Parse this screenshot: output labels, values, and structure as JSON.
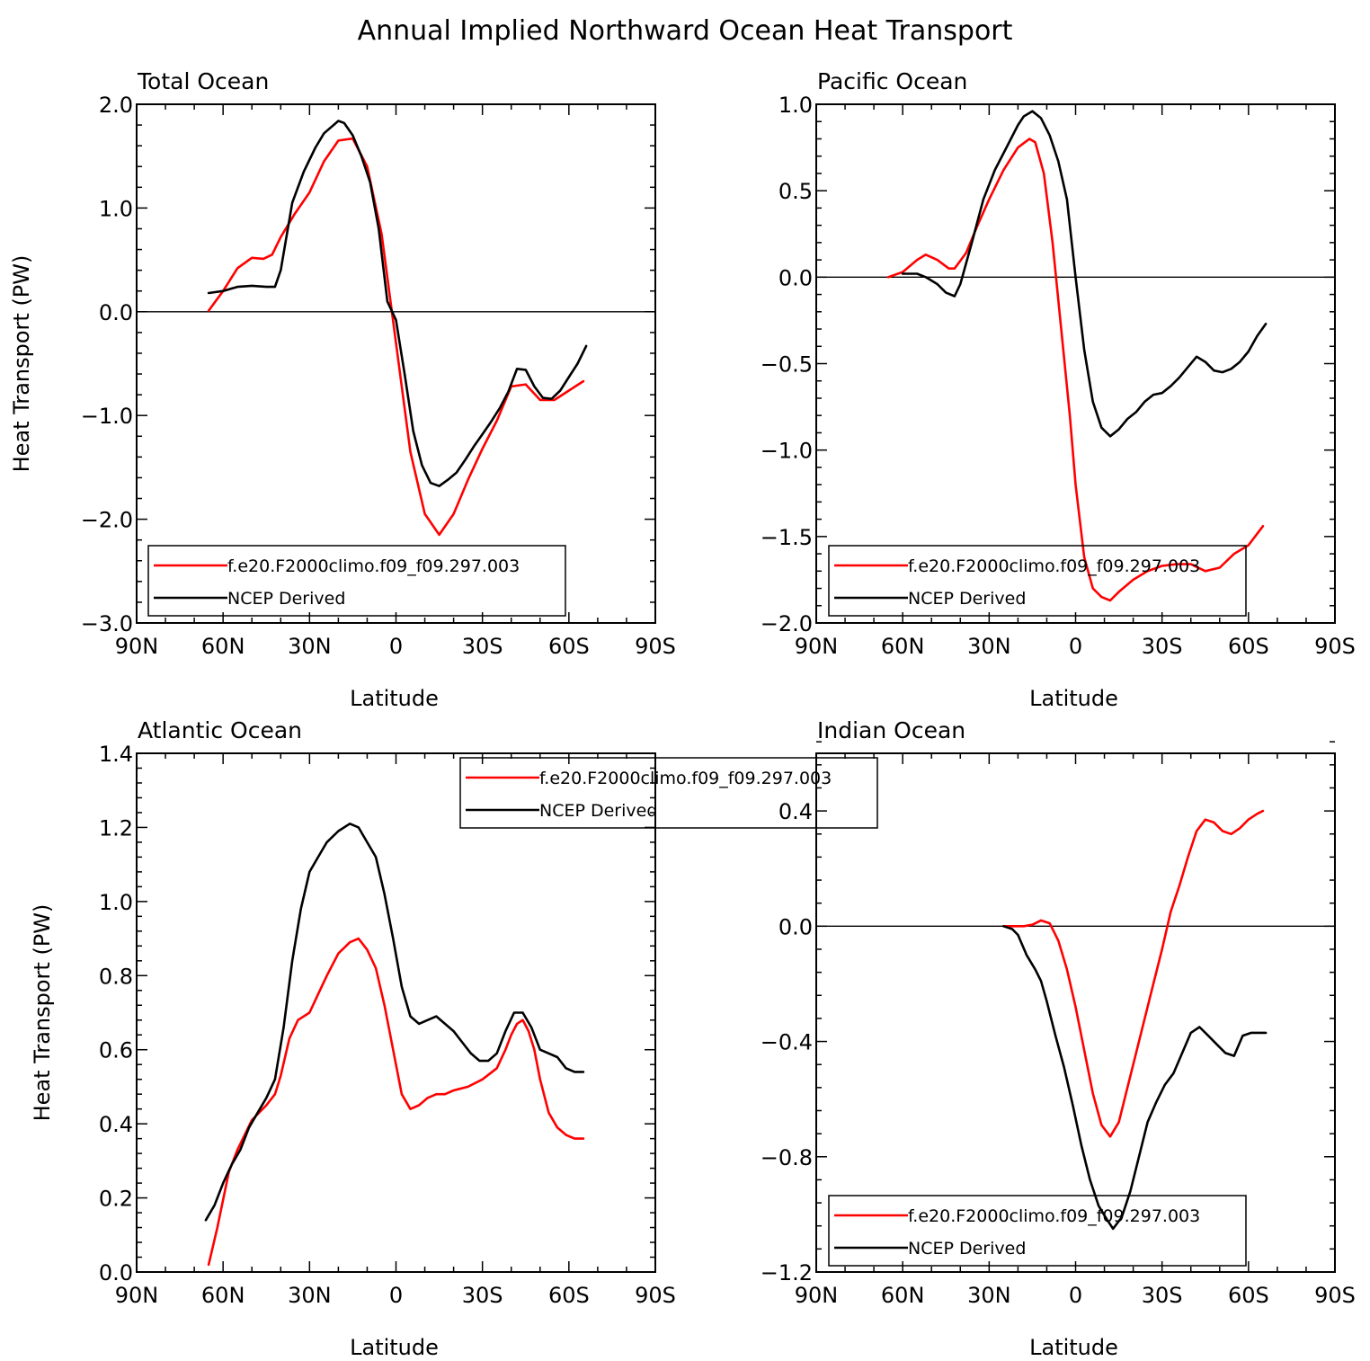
{
  "figure": {
    "title": "Annual Implied Northward Ocean Heat Transport"
  },
  "colors": {
    "model": "#ff0000",
    "ncep": "#000000"
  },
  "chart_data": [
    {
      "type": "line",
      "title": "Total Ocean",
      "xlabel": "Latitude",
      "ylabel": "Heat Transport (PW)",
      "xlim": [
        90,
        -90
      ],
      "xticks": [
        90,
        60,
        30,
        0,
        -30,
        -60,
        -90
      ],
      "xticklabels": [
        "90N",
        "60N",
        "30N",
        "0",
        "30S",
        "60S",
        "90S"
      ],
      "ylim": [
        -3.0,
        2.0
      ],
      "yticks": [
        -3,
        -2,
        -1,
        0,
        1,
        2
      ],
      "yticklabels": [
        "−3.0",
        "−2.0",
        "−1.0",
        "0.0",
        "1.0",
        "2.0"
      ],
      "legend": {
        "placement": "bottom-left"
      },
      "series": [
        {
          "name": "f.e20.F2000climo.f09_f09.297.003",
          "color": "#ff0000",
          "x": [
            65,
            60,
            55,
            50,
            46,
            43,
            40,
            35,
            30,
            25,
            20,
            15,
            10,
            5,
            0,
            -5,
            -10,
            -15,
            -20,
            -25,
            -30,
            -35,
            -40,
            -45,
            -50,
            -55,
            -60,
            -65
          ],
          "y": [
            0.01,
            0.2,
            0.42,
            0.52,
            0.51,
            0.55,
            0.72,
            0.95,
            1.15,
            1.45,
            1.65,
            1.67,
            1.4,
            0.75,
            -0.3,
            -1.35,
            -1.95,
            -2.15,
            -1.95,
            -1.62,
            -1.32,
            -1.05,
            -0.72,
            -0.7,
            -0.85,
            -0.85,
            -0.76,
            -0.67
          ]
        },
        {
          "name": "NCEP Derived",
          "color": "#000000",
          "x": [
            65,
            60,
            55,
            50,
            45,
            42,
            40,
            36,
            32,
            28,
            25,
            20,
            18,
            15,
            12,
            9,
            6,
            3,
            0,
            -3,
            -6,
            -9,
            -12,
            -15,
            -18,
            -21,
            -24,
            -27,
            -30,
            -33,
            -36,
            -39,
            -42,
            -45,
            -48,
            -51,
            -54,
            -57,
            -60,
            -63,
            -66
          ],
          "y": [
            0.18,
            0.2,
            0.24,
            0.25,
            0.24,
            0.24,
            0.4,
            1.05,
            1.35,
            1.58,
            1.72,
            1.84,
            1.82,
            1.7,
            1.5,
            1.25,
            0.8,
            0.1,
            -0.08,
            -0.6,
            -1.15,
            -1.48,
            -1.65,
            -1.68,
            -1.62,
            -1.55,
            -1.43,
            -1.3,
            -1.18,
            -1.06,
            -0.93,
            -0.77,
            -0.55,
            -0.56,
            -0.72,
            -0.83,
            -0.84,
            -0.76,
            -0.63,
            -0.5,
            -0.33
          ]
        }
      ]
    },
    {
      "type": "line",
      "title": "Pacific Ocean",
      "xlabel": "Latitude",
      "ylabel": "",
      "xlim": [
        90,
        -90
      ],
      "xticks": [
        90,
        60,
        30,
        0,
        -30,
        -60,
        -90
      ],
      "xticklabels": [
        "90N",
        "60N",
        "30N",
        "0",
        "30S",
        "60S",
        "90S"
      ],
      "ylim": [
        -2.0,
        1.0
      ],
      "yticks": [
        -2,
        -1.5,
        -1,
        -0.5,
        0,
        0.5,
        1
      ],
      "yticklabels": [
        "−2.0",
        "−1.5",
        "−1.0",
        "−0.5",
        "0.0",
        "0.5",
        "1.0"
      ],
      "legend": {
        "placement": "bottom-left"
      },
      "series": [
        {
          "name": "f.e20.F2000climo.f09_f09.297.003",
          "color": "#ff0000",
          "x": [
            65,
            60,
            55,
            52,
            48,
            44,
            42,
            38,
            34,
            30,
            25,
            20,
            16,
            14,
            11,
            8,
            5,
            2,
            0,
            -3,
            -6,
            -9,
            -12,
            -15,
            -20,
            -25,
            -30,
            -35,
            -40,
            -45,
            -50,
            -55,
            -60,
            -65
          ],
          "y": [
            0.0,
            0.03,
            0.1,
            0.13,
            0.1,
            0.05,
            0.05,
            0.14,
            0.3,
            0.45,
            0.62,
            0.75,
            0.8,
            0.78,
            0.6,
            0.2,
            -0.3,
            -0.8,
            -1.2,
            -1.62,
            -1.8,
            -1.85,
            -1.87,
            -1.82,
            -1.75,
            -1.7,
            -1.67,
            -1.66,
            -1.66,
            -1.7,
            -1.68,
            -1.6,
            -1.55,
            -1.44
          ]
        },
        {
          "name": "NCEP Derived",
          "color": "#000000",
          "x": [
            60,
            55,
            52,
            48,
            45,
            42,
            40,
            36,
            32,
            28,
            24,
            20,
            18,
            15,
            12,
            9,
            6,
            3,
            0,
            -3,
            -6,
            -9,
            -12,
            -15,
            -18,
            -21,
            -24,
            -27,
            -30,
            -33,
            -36,
            -39,
            -42,
            -45,
            -48,
            -51,
            -54,
            -57,
            -60,
            -63,
            -66
          ],
          "y": [
            0.02,
            0.02,
            0.0,
            -0.04,
            -0.09,
            -0.11,
            -0.04,
            0.2,
            0.45,
            0.62,
            0.75,
            0.88,
            0.93,
            0.96,
            0.92,
            0.82,
            0.67,
            0.45,
            0.0,
            -0.42,
            -0.72,
            -0.87,
            -0.92,
            -0.88,
            -0.82,
            -0.78,
            -0.72,
            -0.68,
            -0.67,
            -0.63,
            -0.58,
            -0.52,
            -0.46,
            -0.49,
            -0.54,
            -0.55,
            -0.53,
            -0.49,
            -0.43,
            -0.34,
            -0.27
          ]
        }
      ]
    },
    {
      "type": "line",
      "title": "Atlantic Ocean",
      "xlabel": "Latitude",
      "ylabel": "Heat Transport (PW)",
      "xlim": [
        90,
        -90
      ],
      "xticks": [
        90,
        60,
        30,
        0,
        -30,
        -60,
        -90
      ],
      "xticklabels": [
        "90N",
        "60N",
        "30N",
        "0",
        "30S",
        "60S",
        "90S"
      ],
      "ylim": [
        0.0,
        1.4
      ],
      "yticks": [
        0,
        0.2,
        0.4,
        0.6,
        0.8,
        1.0,
        1.2,
        1.4
      ],
      "yticklabels": [
        "0.0",
        "0.2",
        "0.4",
        "0.6",
        "0.8",
        "1.0",
        "1.2",
        "1.4"
      ],
      "legend": {
        "placement": "top-right"
      },
      "series": [
        {
          "name": "f.e20.F2000climo.f09_f09.297.003",
          "color": "#ff0000",
          "x": [
            65,
            62,
            58,
            55,
            50,
            45,
            42,
            40,
            37,
            34,
            30,
            27,
            24,
            20,
            16,
            13,
            10,
            7,
            4,
            1,
            -2,
            -5,
            -8,
            -11,
            -14,
            -17,
            -20,
            -25,
            -30,
            -35,
            -38,
            -40,
            -42,
            -44,
            -46,
            -48,
            -50,
            -53,
            -56,
            -59,
            -62,
            -65
          ],
          "y": [
            0.02,
            0.12,
            0.27,
            0.33,
            0.41,
            0.45,
            0.48,
            0.53,
            0.63,
            0.68,
            0.7,
            0.75,
            0.8,
            0.86,
            0.89,
            0.9,
            0.87,
            0.82,
            0.72,
            0.6,
            0.48,
            0.44,
            0.45,
            0.47,
            0.48,
            0.48,
            0.49,
            0.5,
            0.52,
            0.55,
            0.6,
            0.64,
            0.67,
            0.68,
            0.65,
            0.6,
            0.52,
            0.43,
            0.39,
            0.37,
            0.36,
            0.36
          ]
        },
        {
          "name": "NCEP Derived",
          "color": "#000000",
          "x": [
            66,
            63,
            60,
            57,
            54,
            51,
            48,
            45,
            42,
            39,
            36,
            33,
            30,
            27,
            24,
            20,
            16,
            13,
            10,
            7,
            4,
            1,
            -2,
            -5,
            -8,
            -11,
            -14,
            -17,
            -20,
            -23,
            -26,
            -29,
            -32,
            -35,
            -38,
            -41,
            -44,
            -47,
            -50,
            -53,
            -56,
            -59,
            -62,
            -65
          ],
          "y": [
            0.14,
            0.18,
            0.24,
            0.29,
            0.33,
            0.39,
            0.43,
            0.47,
            0.52,
            0.66,
            0.84,
            0.98,
            1.08,
            1.12,
            1.16,
            1.19,
            1.21,
            1.2,
            1.16,
            1.12,
            1.02,
            0.9,
            0.77,
            0.69,
            0.67,
            0.68,
            0.69,
            0.67,
            0.65,
            0.62,
            0.59,
            0.57,
            0.57,
            0.59,
            0.65,
            0.7,
            0.7,
            0.66,
            0.6,
            0.59,
            0.58,
            0.55,
            0.54,
            0.54
          ]
        }
      ]
    },
    {
      "type": "line",
      "title": "Indian Ocean",
      "xlabel": "Latitude",
      "ylabel": "",
      "xlim": [
        90,
        -90
      ],
      "xticks": [
        90,
        60,
        30,
        0,
        -30,
        -60,
        -90
      ],
      "xticklabels": [
        "90N",
        "60N",
        "30N",
        "0",
        "30S",
        "60S",
        "90S"
      ],
      "ylim": [
        -1.2,
        0.6
      ],
      "yticks": [
        -1.2,
        -0.8,
        -0.4,
        0,
        0.4
      ],
      "yticklabels": [
        "−1.2",
        "−0.8",
        "−0.4",
        "0.0",
        "0.4"
      ],
      "legend": {
        "placement": "bottom-left"
      },
      "series": [
        {
          "name": "f.e20.F2000climo.f09_f09.297.003",
          "color": "#ff0000",
          "x": [
            25,
            22,
            18,
            15,
            12,
            9,
            6,
            3,
            0,
            -3,
            -6,
            -9,
            -12,
            -15,
            -18,
            -21,
            -24,
            -27,
            -30,
            -33,
            -36,
            -39,
            -42,
            -45,
            -48,
            -51,
            -54,
            -57,
            -60,
            -63,
            -65
          ],
          "y": [
            0.0,
            0.0,
            0.0,
            0.005,
            0.02,
            0.01,
            -0.05,
            -0.15,
            -0.28,
            -0.43,
            -0.58,
            -0.69,
            -0.73,
            -0.68,
            -0.56,
            -0.44,
            -0.32,
            -0.2,
            -0.08,
            0.05,
            0.14,
            0.24,
            0.33,
            0.37,
            0.36,
            0.33,
            0.32,
            0.34,
            0.37,
            0.39,
            0.4
          ]
        },
        {
          "name": "NCEP Derived",
          "color": "#000000",
          "x": [
            25,
            22,
            20,
            17,
            14,
            12,
            10,
            7,
            4,
            1,
            -2,
            -5,
            -8,
            -11,
            -13,
            -16,
            -19,
            -22,
            -25,
            -28,
            -31,
            -34,
            -37,
            -40,
            -43,
            -46,
            -49,
            -52,
            -55,
            -58,
            -61,
            -64,
            -66
          ],
          "y": [
            0.0,
            -0.01,
            -0.03,
            -0.1,
            -0.15,
            -0.19,
            -0.26,
            -0.38,
            -0.49,
            -0.62,
            -0.76,
            -0.88,
            -0.97,
            -1.02,
            -1.05,
            -1.01,
            -0.92,
            -0.8,
            -0.68,
            -0.61,
            -0.55,
            -0.51,
            -0.44,
            -0.37,
            -0.35,
            -0.38,
            -0.41,
            -0.44,
            -0.45,
            -0.38,
            -0.37,
            -0.37,
            -0.37
          ]
        }
      ]
    }
  ]
}
